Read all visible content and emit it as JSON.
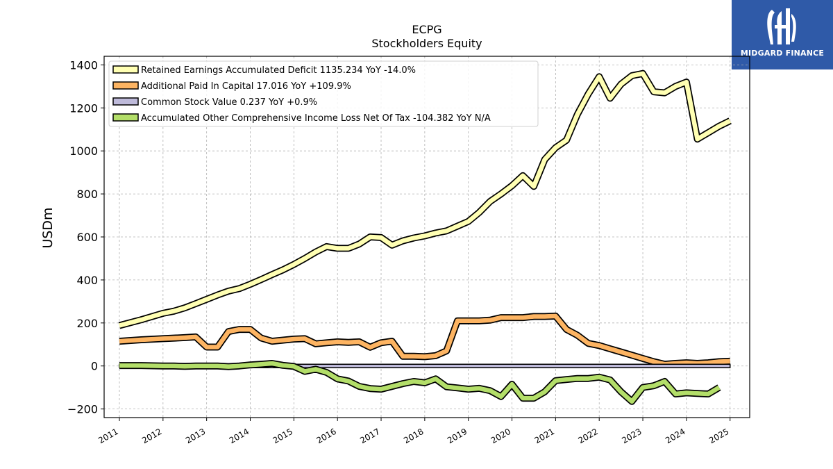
{
  "logo": {
    "text": "MIDGARD FINANCE",
    "bg": "#2f5aa8"
  },
  "chart_data": {
    "type": "line",
    "title": "ECPG",
    "subtitle": "Stockholders  Equity",
    "ylabel": "USDm",
    "xlabel": "",
    "xlim": [
      2010.65,
      2025.45
    ],
    "ylim": [
      -240,
      1440
    ],
    "xticks": [
      2011,
      2012,
      2013,
      2014,
      2015,
      2016,
      2017,
      2018,
      2019,
      2020,
      2021,
      2022,
      2023,
      2024,
      2025
    ],
    "yticks": [
      -200,
      0,
      200,
      400,
      600,
      800,
      1000,
      1200,
      1400
    ],
    "ytick_labels": [
      "−200",
      "0",
      "200",
      "400",
      "600",
      "800",
      "1000",
      "1200",
      "1400"
    ],
    "grid": true,
    "legend_position": "top-left",
    "series": [
      {
        "name": "Retained Earnings Accumulated Deficit  1135.234 YoY -14.0%",
        "color": "#ffffb3",
        "points": [
          [
            2011.0,
            188
          ],
          [
            2011.5,
            215
          ],
          [
            2012.0,
            245
          ],
          [
            2012.25,
            255
          ],
          [
            2012.5,
            270
          ],
          [
            2012.75,
            290
          ],
          [
            2013.0,
            310
          ],
          [
            2013.25,
            330
          ],
          [
            2013.5,
            348
          ],
          [
            2013.75,
            360
          ],
          [
            2014.0,
            380
          ],
          [
            2014.25,
            402
          ],
          [
            2014.5,
            425
          ],
          [
            2014.75,
            447
          ],
          [
            2015.0,
            472
          ],
          [
            2015.25,
            500
          ],
          [
            2015.5,
            530
          ],
          [
            2015.75,
            555
          ],
          [
            2016.0,
            547
          ],
          [
            2016.25,
            547
          ],
          [
            2016.5,
            567
          ],
          [
            2016.75,
            600
          ],
          [
            2017.0,
            597
          ],
          [
            2017.25,
            562
          ],
          [
            2017.5,
            582
          ],
          [
            2017.75,
            595
          ],
          [
            2018.0,
            605
          ],
          [
            2018.25,
            618
          ],
          [
            2018.5,
            628
          ],
          [
            2018.75,
            650
          ],
          [
            2019.0,
            672
          ],
          [
            2019.25,
            714
          ],
          [
            2019.5,
            765
          ],
          [
            2019.75,
            800
          ],
          [
            2020.0,
            838
          ],
          [
            2020.25,
            885
          ],
          [
            2020.5,
            835
          ],
          [
            2020.75,
            960
          ],
          [
            2021.0,
            1015
          ],
          [
            2021.25,
            1050
          ],
          [
            2021.5,
            1170
          ],
          [
            2021.75,
            1265
          ],
          [
            2022.0,
            1345
          ],
          [
            2022.25,
            1245
          ],
          [
            2022.5,
            1310
          ],
          [
            2022.75,
            1350
          ],
          [
            2023.0,
            1360
          ],
          [
            2023.25,
            1275
          ],
          [
            2023.5,
            1270
          ],
          [
            2023.75,
            1300
          ],
          [
            2024.0,
            1320
          ],
          [
            2024.25,
            1055
          ],
          [
            2024.5,
            1085
          ],
          [
            2024.75,
            1115
          ],
          [
            2025.0,
            1140
          ]
        ]
      },
      {
        "name": "Additional Paid In Capital  17.016 YoY +109.9%",
        "color": "#fdb462",
        "points": [
          [
            2011.0,
            115
          ],
          [
            2011.5,
            122
          ],
          [
            2012.0,
            127
          ],
          [
            2012.5,
            132
          ],
          [
            2012.75,
            135
          ],
          [
            2013.0,
            88
          ],
          [
            2013.25,
            88
          ],
          [
            2013.5,
            160
          ],
          [
            2013.75,
            170
          ],
          [
            2014.0,
            170
          ],
          [
            2014.25,
            130
          ],
          [
            2014.5,
            115
          ],
          [
            2015.0,
            125
          ],
          [
            2015.25,
            127
          ],
          [
            2015.5,
            103
          ],
          [
            2015.75,
            108
          ],
          [
            2016.0,
            112
          ],
          [
            2016.25,
            110
          ],
          [
            2016.5,
            112
          ],
          [
            2016.75,
            87
          ],
          [
            2017.0,
            108
          ],
          [
            2017.25,
            115
          ],
          [
            2017.5,
            45
          ],
          [
            2017.75,
            45
          ],
          [
            2018.0,
            43
          ],
          [
            2018.25,
            48
          ],
          [
            2018.5,
            70
          ],
          [
            2018.75,
            210
          ],
          [
            2019.0,
            210
          ],
          [
            2019.25,
            210
          ],
          [
            2019.5,
            213
          ],
          [
            2019.75,
            225
          ],
          [
            2020.0,
            225
          ],
          [
            2020.25,
            225
          ],
          [
            2020.5,
            230
          ],
          [
            2020.75,
            230
          ],
          [
            2021.0,
            232
          ],
          [
            2021.25,
            170
          ],
          [
            2021.5,
            143
          ],
          [
            2021.75,
            105
          ],
          [
            2022.0,
            95
          ],
          [
            2022.25,
            80
          ],
          [
            2022.5,
            65
          ],
          [
            2022.75,
            50
          ],
          [
            2023.0,
            35
          ],
          [
            2023.25,
            20
          ],
          [
            2023.5,
            8
          ],
          [
            2023.75,
            12
          ],
          [
            2024.0,
            15
          ],
          [
            2024.25,
            12
          ],
          [
            2024.5,
            15
          ],
          [
            2024.75,
            20
          ],
          [
            2025.0,
            22
          ]
        ]
      },
      {
        "name": "Common Stock Value  0.237 YoY +0.9%",
        "color": "#bebada",
        "points": [
          [
            2011.0,
            0.22
          ],
          [
            2025.0,
            0.24
          ]
        ]
      },
      {
        "name": "Accumulated Other Comprehensive Income Loss Net Of Tax  -104.382 YoY N/A",
        "color": "#b3de69",
        "points": [
          [
            2011.0,
            2
          ],
          [
            2011.5,
            2
          ],
          [
            2012.0,
            0
          ],
          [
            2012.25,
            0
          ],
          [
            2012.5,
            -2
          ],
          [
            2012.75,
            0
          ],
          [
            2013.0,
            0
          ],
          [
            2013.25,
            0
          ],
          [
            2013.5,
            -3
          ],
          [
            2013.75,
            0
          ],
          [
            2014.0,
            5
          ],
          [
            2014.25,
            8
          ],
          [
            2014.5,
            12
          ],
          [
            2014.75,
            3
          ],
          [
            2015.0,
            -2
          ],
          [
            2015.25,
            -25
          ],
          [
            2015.5,
            -15
          ],
          [
            2015.75,
            -30
          ],
          [
            2016.0,
            -60
          ],
          [
            2016.25,
            -70
          ],
          [
            2016.5,
            -95
          ],
          [
            2016.75,
            -105
          ],
          [
            2017.0,
            -108
          ],
          [
            2017.25,
            -95
          ],
          [
            2017.5,
            -82
          ],
          [
            2017.75,
            -72
          ],
          [
            2018.0,
            -78
          ],
          [
            2018.25,
            -60
          ],
          [
            2018.5,
            -97
          ],
          [
            2018.75,
            -102
          ],
          [
            2019.0,
            -108
          ],
          [
            2019.25,
            -104
          ],
          [
            2019.5,
            -115
          ],
          [
            2019.75,
            -142
          ],
          [
            2020.0,
            -85
          ],
          [
            2020.25,
            -150
          ],
          [
            2020.5,
            -150
          ],
          [
            2020.75,
            -120
          ],
          [
            2021.0,
            -68
          ],
          [
            2021.25,
            -63
          ],
          [
            2021.5,
            -58
          ],
          [
            2021.75,
            -58
          ],
          [
            2022.0,
            -52
          ],
          [
            2022.25,
            -65
          ],
          [
            2022.5,
            -120
          ],
          [
            2022.75,
            -165
          ],
          [
            2023.0,
            -100
          ],
          [
            2023.25,
            -92
          ],
          [
            2023.5,
            -72
          ],
          [
            2023.75,
            -130
          ],
          [
            2024.0,
            -125
          ],
          [
            2024.25,
            -128
          ],
          [
            2024.5,
            -130
          ],
          [
            2024.75,
            -100
          ]
        ]
      }
    ]
  }
}
